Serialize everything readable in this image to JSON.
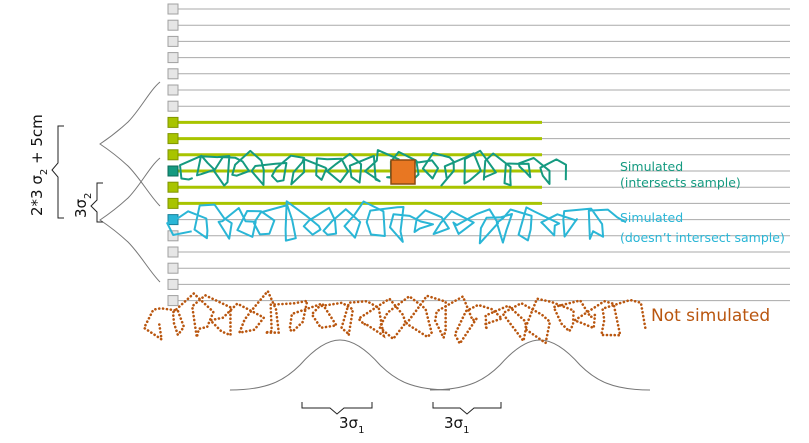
{
  "labels": {
    "simulated_intersects_line1": "Simulated",
    "simulated_intersects_line2": "(intersects sample)",
    "simulated_not_intersect_line1": "Simulated",
    "simulated_not_intersect_line2": "(doesn’t intersect sample)",
    "not_simulated": "Not simulated",
    "outer_bracket_main": "2*3 σ",
    "outer_bracket_sub": "2",
    "outer_bracket_tail": " + 5cm",
    "inner_bracket_main": "3σ",
    "inner_bracket_sub": "2",
    "bottom_left_main": "3σ",
    "bottom_left_sub": "1",
    "bottom_right_main": "3σ",
    "bottom_right_sub": "1"
  },
  "colors": {
    "grid_line": "#aaaaaa",
    "highlight_line": "#a8c400",
    "intersect_path": "#159a80",
    "non_intersect_path": "#2ab6d6",
    "not_simulated_path": "#b9560f",
    "sample_fill": "#e87722",
    "gaussian": "#777777",
    "bracket": "#222222"
  }
}
